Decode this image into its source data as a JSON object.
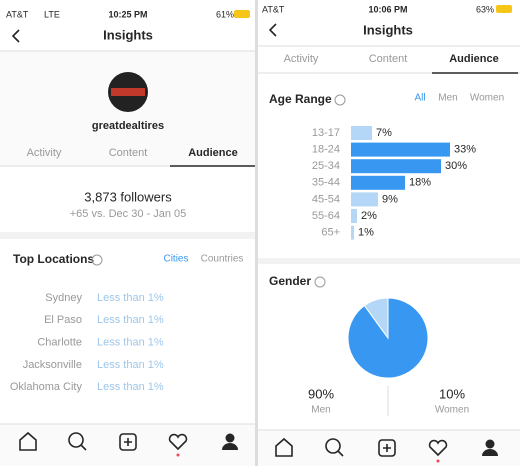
{
  "left": {
    "status": {
      "carrier": "AT&T",
      "network": "LTE",
      "time": "10:25 PM",
      "battery": "61%"
    },
    "header": {
      "title": "Insights"
    },
    "profile": {
      "username": "greatdealtires"
    },
    "tabs": [
      "Activity",
      "Content",
      "Audience"
    ],
    "followers": {
      "count": "3,873 followers",
      "change": "+65 vs. Dec 30 - Jan 05"
    },
    "top_locations": {
      "title": "Top Locations",
      "filters": [
        "Cities",
        "Countries"
      ],
      "rows": [
        {
          "city": "Sydney",
          "share": "Less than 1%"
        },
        {
          "city": "El Paso",
          "share": "Less than 1%"
        },
        {
          "city": "Charlotte",
          "share": "Less than 1%"
        },
        {
          "city": "Jacksonville",
          "share": "Less than 1%"
        },
        {
          "city": "Oklahoma City",
          "share": "Less than 1%"
        }
      ]
    }
  },
  "right": {
    "status": {
      "carrier": "AT&T",
      "time": "10:06 PM",
      "battery": "63%"
    },
    "header": {
      "title": "Insights"
    },
    "tabs": [
      "Activity",
      "Content",
      "Audience"
    ],
    "age_range": {
      "type": "bar",
      "title": "Age Range",
      "filters": [
        "All",
        "Men",
        "Women"
      ],
      "categories": [
        "13-17",
        "18-24",
        "25-34",
        "35-44",
        "45-54",
        "55-64",
        "65+"
      ],
      "values": [
        7,
        33,
        30,
        18,
        9,
        2,
        1
      ],
      "value_labels": [
        "7%",
        "33%",
        "30%",
        "18%",
        "9%",
        "2%",
        "1%"
      ],
      "colors": [
        "#b5d7f7",
        "#3897f0",
        "#3897f0",
        "#3897f0",
        "#b5d7f7",
        "#b5d7f7",
        "#b5d7f7"
      ]
    },
    "gender": {
      "type": "pie",
      "title": "Gender",
      "categories": [
        "Men",
        "Women"
      ],
      "values": [
        90,
        10
      ],
      "value_labels": [
        "90%",
        "10%"
      ],
      "colors": [
        "#3897f0",
        "#b5d7f7"
      ]
    }
  }
}
